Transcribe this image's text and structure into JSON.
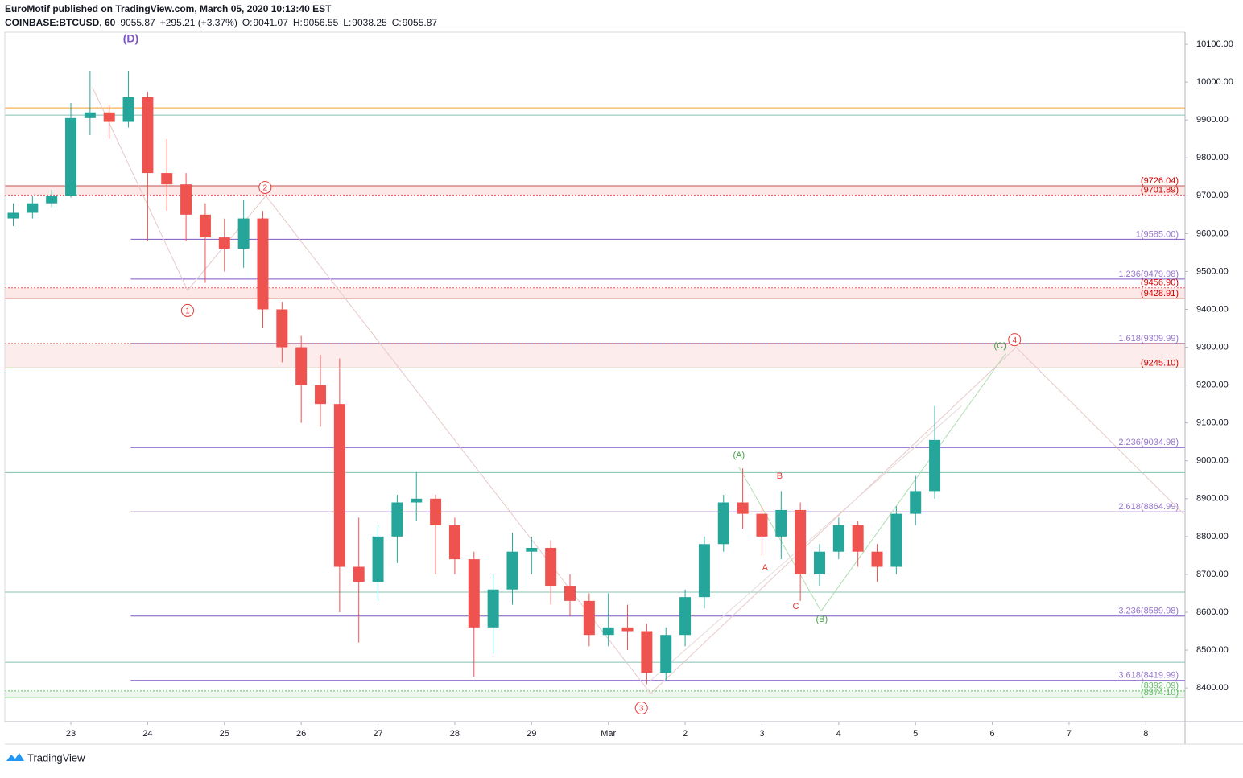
{
  "header": {
    "publisher": "EuroMotif published on TradingView.com, March 05, 2020 10:13:40 EST",
    "symbol": "COINBASE:BTCUSD, 60",
    "last": "9055.87",
    "change": "+295.21 (+3.37%)",
    "o_label": "O:",
    "o": "9041.07",
    "h_label": "H:",
    "h": "9056.55",
    "l_label": "L:",
    "l": "9038.25",
    "c_label": "C:",
    "c": "9055.87"
  },
  "footer": {
    "brand": "TradingView"
  },
  "chart_data": {
    "type": "candlestick",
    "up_color": "#26a69a",
    "down_color": "#ef5350",
    "xlim": [
      -0.86,
      14.51
    ],
    "ylim": [
      8311,
      10132
    ],
    "xticks": [
      {
        "value": 0,
        "label": "23"
      },
      {
        "value": 1,
        "label": "24"
      },
      {
        "value": 2,
        "label": "25"
      },
      {
        "value": 3,
        "label": "26"
      },
      {
        "value": 4,
        "label": "27"
      },
      {
        "value": 5,
        "label": "28"
      },
      {
        "value": 6,
        "label": "29"
      },
      {
        "value": 7,
        "label": "Mar"
      },
      {
        "value": 8,
        "label": "2"
      },
      {
        "value": 9,
        "label": "3"
      },
      {
        "value": 10,
        "label": "4"
      },
      {
        "value": 11,
        "label": "5"
      },
      {
        "value": 12,
        "label": "6"
      },
      {
        "value": 13,
        "label": "7"
      },
      {
        "value": 14,
        "label": "8"
      }
    ],
    "yticks": [
      {
        "value": 8400,
        "label": "8400.00"
      },
      {
        "value": 8500,
        "label": "8500.00"
      },
      {
        "value": 8600,
        "label": "8600.00"
      },
      {
        "value": 8700,
        "label": "8700.00"
      },
      {
        "value": 8800,
        "label": "8800.00"
      },
      {
        "value": 8900,
        "label": "8900.00"
      },
      {
        "value": 9000,
        "label": "9000.00"
      },
      {
        "value": 9100,
        "label": "9100.00"
      },
      {
        "value": 9200,
        "label": "9200.00"
      },
      {
        "value": 9300,
        "label": "9300.00"
      },
      {
        "value": 9400,
        "label": "9400.00"
      },
      {
        "value": 9500,
        "label": "9500.00"
      },
      {
        "value": 9600,
        "label": "9600.00"
      },
      {
        "value": 9700,
        "label": "9700.00"
      },
      {
        "value": 9800,
        "label": "9800.00"
      },
      {
        "value": 9900,
        "label": "9900.00"
      },
      {
        "value": 10000,
        "label": "10000.00"
      },
      {
        "value": 10100,
        "label": "10100.00"
      }
    ],
    "candles": {
      "x": [
        -0.75,
        -0.5,
        -0.25,
        0,
        0.25,
        0.5,
        0.75,
        1,
        1.25,
        1.5,
        1.75,
        2,
        2.25,
        2.5,
        2.75,
        3,
        3.25,
        3.5,
        3.75,
        4,
        4.25,
        4.5,
        4.75,
        5,
        5.25,
        5.5,
        5.75,
        6,
        6.25,
        6.5,
        6.75,
        7,
        7.25,
        7.5,
        7.75,
        8,
        8.25,
        8.5,
        8.75,
        9,
        9.25,
        9.5,
        9.75,
        10,
        10.25,
        10.5,
        10.75,
        11,
        11.25
      ],
      "open": [
        9640,
        9655,
        9680,
        9700,
        9905,
        9920,
        9895,
        9960,
        9760,
        9730,
        9650,
        9590,
        9560,
        9640,
        9400,
        9300,
        9200,
        9150,
        8720,
        8680,
        8800,
        8890,
        8900,
        8830,
        8740,
        8560,
        8660,
        8760,
        8770,
        8670,
        8630,
        8540,
        8560,
        8550,
        8440,
        8540,
        8640,
        8780,
        8890,
        8860,
        8800,
        8870,
        8700,
        8760,
        8830,
        8760,
        8720,
        8860,
        8920
      ],
      "high": [
        9680,
        9700,
        9715,
        9945,
        10030,
        9940,
        10030,
        9975,
        9850,
        9760,
        9680,
        9640,
        9690,
        9660,
        9420,
        9330,
        9280,
        9270,
        8850,
        8830,
        8910,
        8970,
        8910,
        8850,
        8760,
        8700,
        8810,
        8800,
        8790,
        8700,
        8650,
        8650,
        8620,
        8570,
        8560,
        8660,
        8800,
        8910,
        8980,
        8880,
        8920,
        8890,
        8780,
        8850,
        8840,
        8780,
        8880,
        8960,
        9145
      ],
      "low": [
        9620,
        9640,
        9670,
        9695,
        9860,
        9850,
        9880,
        9580,
        9660,
        9580,
        9470,
        9500,
        9510,
        9350,
        9260,
        9100,
        9090,
        8600,
        8520,
        8630,
        8730,
        8840,
        8700,
        8700,
        8430,
        8490,
        8620,
        8700,
        8620,
        8590,
        8510,
        8510,
        8500,
        8410,
        8420,
        8510,
        8610,
        8760,
        8820,
        8750,
        8740,
        8630,
        8670,
        8740,
        8720,
        8680,
        8700,
        8830,
        8900
      ],
      "close": [
        9655,
        9680,
        9700,
        9905,
        9920,
        9895,
        9960,
        9760,
        9730,
        9650,
        9590,
        9560,
        9640,
        9400,
        9300,
        9200,
        9150,
        8720,
        8680,
        8800,
        8890,
        8900,
        8830,
        8740,
        8560,
        8660,
        8760,
        8770,
        8670,
        8630,
        8540,
        8560,
        8550,
        8440,
        8540,
        8640,
        8780,
        8890,
        8860,
        8800,
        8870,
        8700,
        8760,
        8830,
        8760,
        8720,
        8860,
        8920,
        9055
      ]
    },
    "bands": [
      {
        "from": 9726.04,
        "to": 9701.89,
        "color": "#fde8e8"
      },
      {
        "from": 9456.9,
        "to": 9428.91,
        "color": "#fde8e8"
      },
      {
        "from": 9309.99,
        "to": 9245.1,
        "color": "#fdecec"
      },
      {
        "from": 8392.09,
        "to": 8374.1,
        "color": "#eef7ee"
      }
    ],
    "levels": [
      {
        "value": 9932,
        "color": "#f0a030",
        "start": -0.86
      },
      {
        "value": 9913,
        "color": "#80c0b0",
        "start": -0.86
      },
      {
        "value": 9726.04,
        "color": "#c0504d",
        "start": -0.86,
        "label": "(9726.04)",
        "label_color": "#d50000"
      },
      {
        "value": 9701.89,
        "color": "#e06060",
        "dash": true,
        "start": -0.86,
        "label": "(9701.89)",
        "label_color": "#d50000"
      },
      {
        "value": 9585.0,
        "color": "#7e57c2",
        "start": 0.78,
        "label": "1(9585.00)",
        "label_color": "#9575cd"
      },
      {
        "value": 9479.98,
        "color": "#7e57c2",
        "start": 0.78,
        "label": "1.236(9479.98)",
        "label_color": "#9575cd"
      },
      {
        "value": 9456.9,
        "color": "#e06060",
        "dash": true,
        "start": -0.86,
        "label": "(9456.90)",
        "label_color": "#d50000"
      },
      {
        "value": 9428.91,
        "color": "#c0504d",
        "start": -0.86,
        "label": "(9428.91)",
        "label_color": "#d50000"
      },
      {
        "value": 9309.99,
        "color": "#7e57c2",
        "start": 0.78,
        "label": "1.618(9309.99)",
        "label_color": "#9575cd"
      },
      {
        "value": 9309.98,
        "color": "#e06060",
        "dash": true,
        "start": -0.86
      },
      {
        "value": 9245.1,
        "color": "#66bb6a",
        "start": -0.86,
        "label": "(9245.10)",
        "label_color": "#d50000"
      },
      {
        "value": 9034.98,
        "color": "#7e57c2",
        "start": 0.78,
        "label": "2.236(9034.98)",
        "label_color": "#9575cd"
      },
      {
        "value": 8969,
        "color": "#80c0b0",
        "start": -0.86
      },
      {
        "value": 8864.99,
        "color": "#7e57c2",
        "start": 0.78,
        "label": "2.618(8864.99)",
        "label_color": "#9575cd"
      },
      {
        "value": 8653,
        "color": "#80c0b0",
        "start": -0.86
      },
      {
        "value": 8589.98,
        "color": "#7e57c2",
        "start": 0.78,
        "label": "3.236(8589.98)",
        "label_color": "#9575cd"
      },
      {
        "value": 8468,
        "color": "#80c0b0",
        "start": -0.86
      },
      {
        "value": 8419.99,
        "color": "#7e57c2",
        "start": 0.78,
        "label": "3.618(8419.99)",
        "label_color": "#9575cd"
      },
      {
        "value": 8392.09,
        "color": "#66bb6a",
        "dash": true,
        "start": -0.86,
        "label": "(8392.09)",
        "label_color": "#66bb6a"
      },
      {
        "value": 8374.1,
        "color": "#66bb6a",
        "start": -0.86,
        "label": "(8374.10)",
        "label_color": "#66bb6a"
      }
    ],
    "wave_lines": [
      {
        "color": "#e8c8c8",
        "x": [
          0.28,
          1.52,
          2.54,
          7.55,
          12.31,
          14.49
        ],
        "y": [
          9987,
          9450,
          9700,
          8385,
          9300,
          8860
        ]
      },
      {
        "color": "#b0dcb0",
        "x": [
          8.7,
          9.77,
          12.18
        ],
        "y": [
          8983,
          8603,
          9285
        ]
      },
      {
        "color": "#e6d8d8",
        "x": [
          7.55,
          11.6
        ],
        "y": [
          8420,
          9145
        ]
      }
    ],
    "annotations": [
      {
        "text": "(D)",
        "x": 0.78,
        "y": 10115,
        "color": "#7e57c2",
        "bold": true
      },
      {
        "text": "1",
        "x": 1.52,
        "y": 9397,
        "color": "#e53935",
        "circle": true
      },
      {
        "text": "2",
        "x": 2.53,
        "y": 9722,
        "color": "#e53935",
        "circle": true
      },
      {
        "text": "3",
        "x": 7.43,
        "y": 8347,
        "color": "#e53935",
        "circle": true
      },
      {
        "text": "4",
        "x": 12.29,
        "y": 9320,
        "color": "#e53935",
        "circle": true
      },
      {
        "text": "(A)",
        "x": 8.7,
        "y": 9016,
        "color": "#43a047"
      },
      {
        "text": "B",
        "x": 9.23,
        "y": 8961,
        "color": "#e53935"
      },
      {
        "text": "A",
        "x": 9.04,
        "y": 8719,
        "color": "#e53935"
      },
      {
        "text": "C",
        "x": 9.44,
        "y": 8617,
        "color": "#e53935"
      },
      {
        "text": "(B)",
        "x": 9.78,
        "y": 8583,
        "color": "#43a047"
      },
      {
        "text": "(C)",
        "x": 12.1,
        "y": 9305,
        "color": "#43a047"
      }
    ]
  }
}
